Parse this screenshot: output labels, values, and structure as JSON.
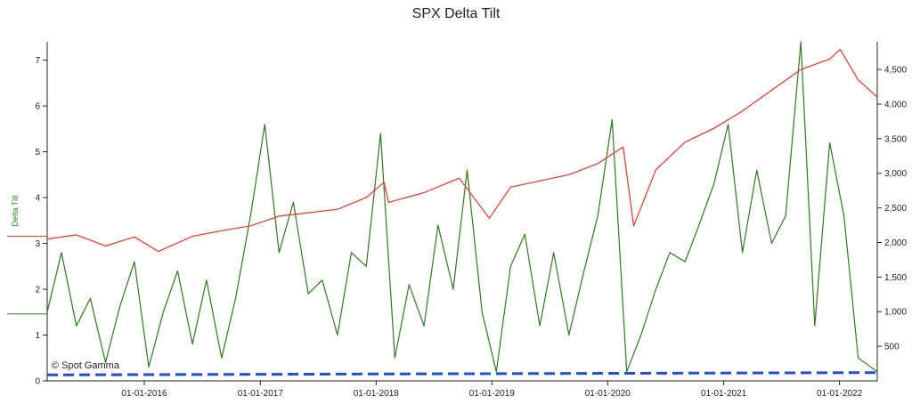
{
  "chart_data": {
    "type": "line",
    "title": "SPX Delta Tilt",
    "xlabel": "",
    "ylabel": "Delta Tilt",
    "y2label": "",
    "watermark": "© Spot Gamma",
    "x_range": [
      "2015-03-01",
      "2022-04-30"
    ],
    "ylim": [
      0,
      7.4
    ],
    "y2lim": [
      0,
      4900
    ],
    "x_ticks": [
      "01-01-2016",
      "01-01-2017",
      "01-01-2018",
      "01-01-2019",
      "01-01-2020",
      "01-01-2021",
      "01-01-2022"
    ],
    "y_ticks": [
      "0",
      "1",
      "2",
      "3",
      "4",
      "5",
      "6",
      "7"
    ],
    "y2_ticks": [
      "500",
      "1,000",
      "1,500",
      "2,000",
      "2,500",
      "3,000",
      "3,500",
      "4,000",
      "4,500"
    ],
    "colors": {
      "delta_tilt": "#2d7a1f",
      "spx": "#e8352b",
      "baseline": "#1f4fd8"
    },
    "grid": false,
    "series": [
      {
        "axis": "left",
        "color": "#2d7a1f",
        "x": [
          "2015-03-01",
          "2015-04-15",
          "2015-06-01",
          "2015-07-15",
          "2015-09-01",
          "2015-10-15",
          "2015-12-01",
          "2016-01-15",
          "2016-03-01",
          "2016-04-15",
          "2016-06-01",
          "2016-07-15",
          "2016-09-01",
          "2016-10-15",
          "2016-12-01",
          "2017-01-15",
          "2017-03-01",
          "2017-04-15",
          "2017-06-01",
          "2017-07-15",
          "2017-09-01",
          "2017-10-15",
          "2017-12-01",
          "2018-01-15",
          "2018-03-01",
          "2018-04-15",
          "2018-06-01",
          "2018-07-15",
          "2018-09-01",
          "2018-10-15",
          "2018-12-01",
          "2019-01-15",
          "2019-03-01",
          "2019-04-15",
          "2019-06-01",
          "2019-07-15",
          "2019-09-01",
          "2019-10-15",
          "2019-12-01",
          "2020-01-15",
          "2020-03-01",
          "2020-04-15",
          "2020-06-01",
          "2020-07-15",
          "2020-09-01",
          "2020-10-15",
          "2020-12-01",
          "2021-01-15",
          "2021-03-01",
          "2021-04-15",
          "2021-06-01",
          "2021-07-15",
          "2021-09-01",
          "2021-10-15",
          "2021-12-01",
          "2022-01-15",
          "2022-03-01",
          "2022-04-30"
        ],
        "values": [
          1.5,
          2.8,
          1.2,
          1.8,
          0.4,
          1.6,
          2.6,
          0.3,
          1.5,
          2.4,
          0.8,
          2.2,
          0.5,
          1.8,
          3.6,
          5.6,
          2.8,
          3.9,
          1.9,
          2.2,
          1.0,
          2.8,
          2.5,
          5.4,
          0.5,
          2.1,
          1.2,
          3.4,
          2.0,
          4.6,
          1.5,
          0.2,
          2.5,
          3.2,
          1.2,
          2.8,
          1.0,
          2.3,
          3.6,
          5.7,
          0.2,
          1.0,
          2.0,
          2.8,
          2.6,
          3.4,
          4.3,
          5.6,
          2.8,
          4.6,
          3.0,
          3.6,
          7.4,
          1.2,
          5.2,
          3.6,
          0.5,
          0.2
        ]
      },
      {
        "axis": "right",
        "color": "#e8352b",
        "x": [
          "2015-03-01",
          "2015-06-01",
          "2015-09-01",
          "2015-12-01",
          "2016-02-15",
          "2016-06-01",
          "2016-09-01",
          "2016-12-01",
          "2017-03-01",
          "2017-06-01",
          "2017-09-01",
          "2017-12-01",
          "2018-01-26",
          "2018-02-09",
          "2018-06-01",
          "2018-09-20",
          "2018-12-24",
          "2019-03-01",
          "2019-06-01",
          "2019-09-01",
          "2019-12-01",
          "2020-02-19",
          "2020-03-23",
          "2020-06-01",
          "2020-09-01",
          "2020-12-01",
          "2021-03-01",
          "2021-06-01",
          "2021-09-01",
          "2021-12-01",
          "2022-01-03",
          "2022-03-01",
          "2022-04-30"
        ],
        "values": [
          2050,
          2110,
          1950,
          2080,
          1870,
          2090,
          2170,
          2240,
          2380,
          2430,
          2480,
          2650,
          2870,
          2580,
          2720,
          2930,
          2350,
          2800,
          2890,
          2980,
          3140,
          3380,
          2240,
          3050,
          3450,
          3650,
          3900,
          4200,
          4500,
          4650,
          4790,
          4350,
          4100
        ]
      },
      {
        "axis": "left",
        "color": "#1f4fd8",
        "style": "dashed",
        "x": [
          "2015-03-01",
          "2022-04-30"
        ],
        "values": [
          0.13,
          0.18
        ]
      }
    ]
  }
}
